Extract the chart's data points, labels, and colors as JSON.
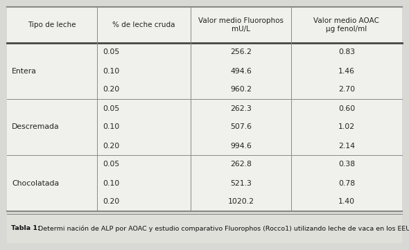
{
  "bg_color": "#d8d8d5",
  "table_bg": "#f0f0ec",
  "caption_bg": "#e0e0db",
  "caption_bold": "Tabla 1:",
  "caption_rest": " Determi nación de ALP por AOAC y estudio comparativo Fluorophos (Rocco1) utilizando leche de vaca en los EEUU",
  "col_headers": [
    "Tipo de leche",
    "% de leche cruda",
    "Valor medio Fluorophos\nmU/L",
    "Valor medio AOAC\nµg fenol/ml"
  ],
  "groups": [
    {
      "name": "Entera",
      "rows": [
        [
          "0.05",
          "256.2",
          "0.83"
        ],
        [
          "0.10",
          "494.6",
          "1.46"
        ],
        [
          "0.20",
          "960.2",
          "2.70"
        ]
      ]
    },
    {
      "name": "Descremada",
      "rows": [
        [
          "0.05",
          "262.3",
          "0.60"
        ],
        [
          "0.10",
          "507.6",
          "1.02"
        ],
        [
          "0.20",
          "994.6",
          "2.14"
        ]
      ]
    },
    {
      "name": "Chocolatada",
      "rows": [
        [
          "0.05",
          "262.8",
          "0.38"
        ],
        [
          "0.10",
          "521.3",
          "0.78"
        ],
        [
          "0.20",
          "1020.2",
          "1.40"
        ]
      ]
    }
  ],
  "line_color": "#888888",
  "thick_lw": 1.5,
  "thin_lw": 0.7,
  "header_fs": 7.5,
  "data_fs": 7.8,
  "caption_fs": 6.8
}
